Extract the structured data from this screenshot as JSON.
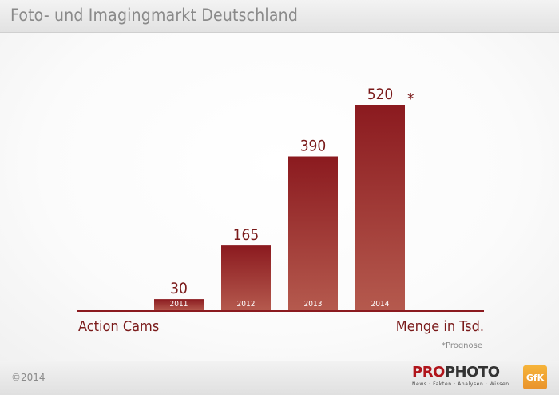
{
  "header": {
    "title": "Foto- und Imagingmarkt Deutschland"
  },
  "chart_data": {
    "type": "bar",
    "categories": [
      "2011",
      "2012",
      "2013",
      "2014"
    ],
    "values": [
      30,
      165,
      390,
      520
    ],
    "value_labels": [
      "30",
      "165",
      "390",
      "520"
    ],
    "annotations": [
      {
        "category": "2014",
        "text": "*"
      }
    ],
    "xlabel": "Action Cams",
    "ylabel": "Menge in Tsd.",
    "ylim": [
      0,
      520
    ],
    "grid": false,
    "legend": "none",
    "colors": {
      "bar_top": "#8b1a1f",
      "bar_bottom": "#b55a4e",
      "text": "#7a1a1a"
    }
  },
  "footnote": "*Prognose",
  "footer": {
    "copyright": "©2014",
    "brand_pro": "PRO",
    "brand_photo": "PHOTO",
    "brand_tagline": "News · Fakten · Analysen · Wissen",
    "gfk": "GfK"
  }
}
